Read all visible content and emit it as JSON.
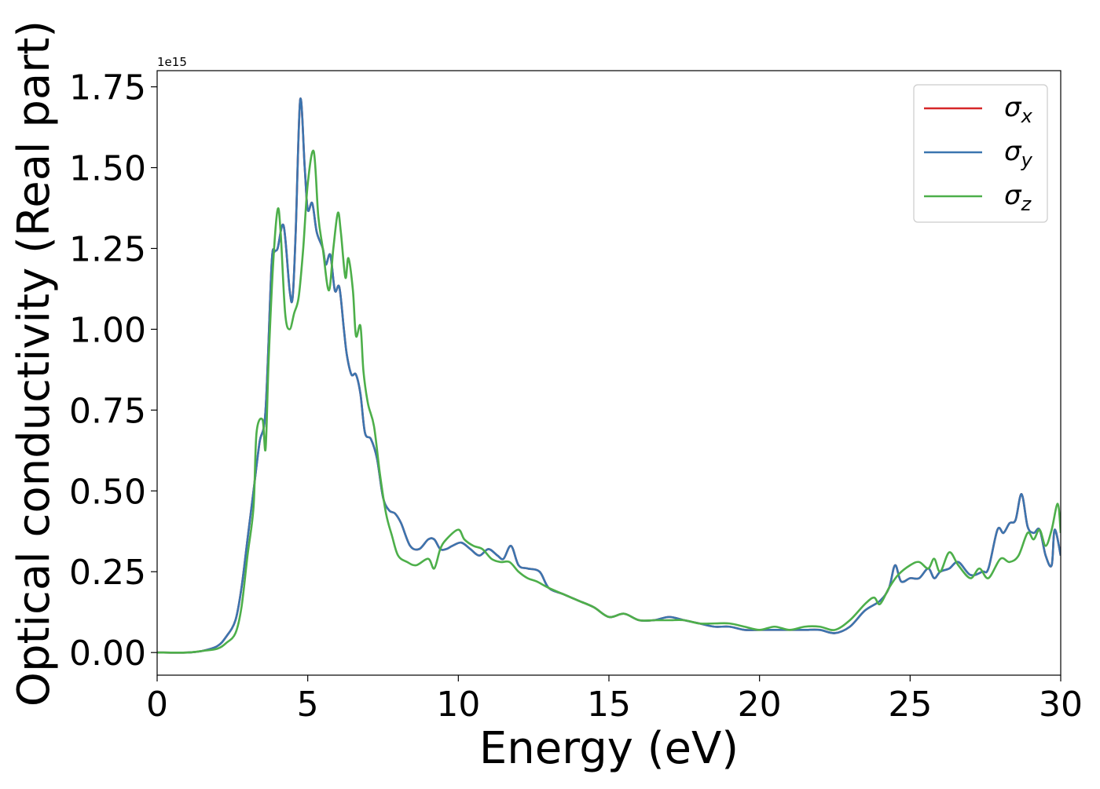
{
  "chart_data": {
    "type": "line",
    "title": "",
    "xlabel": "Energy (eV)",
    "ylabel": "Optical conductivity (Real part)",
    "y_offset_label": "1e15",
    "xlim": [
      0,
      30
    ],
    "ylim": [
      -0.07,
      1.8
    ],
    "x_ticks": [
      0,
      5,
      10,
      15,
      20,
      25,
      30
    ],
    "x_tick_labels": [
      "0",
      "5",
      "10",
      "15",
      "20",
      "25",
      "30"
    ],
    "y_ticks": [
      0.0,
      0.25,
      0.5,
      0.75,
      1.0,
      1.25,
      1.5,
      1.75
    ],
    "y_tick_labels": [
      "0.00",
      "0.25",
      "0.50",
      "0.75",
      "1.00",
      "1.25",
      "1.50",
      "1.75"
    ],
    "grid": false,
    "legend_position": "top-right",
    "series": [
      {
        "name": "σ_x",
        "symbol": "σ",
        "subscript": "x",
        "color": "#d62728",
        "x": [
          0,
          1,
          1.5,
          2,
          2.3,
          2.6,
          2.8,
          3.0,
          3.2,
          3.4,
          3.6,
          3.8,
          3.9,
          4.0,
          4.2,
          4.4,
          4.5,
          4.6,
          4.75,
          4.9,
          5.0,
          5.15,
          5.3,
          5.5,
          5.6,
          5.75,
          5.9,
          6.05,
          6.2,
          6.3,
          6.45,
          6.6,
          6.75,
          6.9,
          7.1,
          7.3,
          7.5,
          7.7,
          7.9,
          8.1,
          8.4,
          8.7,
          9.0,
          9.2,
          9.4,
          9.6,
          9.8,
          10.1,
          10.4,
          10.7,
          11.0,
          11.3,
          11.5,
          11.75,
          12.0,
          12.3,
          12.7,
          13.0,
          13.5,
          14.0,
          14.5,
          15.0,
          15.5,
          16.0,
          16.5,
          17.0,
          17.5,
          18.0,
          18.5,
          19.0,
          19.5,
          20.0,
          20.5,
          21.0,
          21.5,
          22.0,
          22.5,
          23.0,
          23.5,
          24.0,
          24.3,
          24.5,
          24.7,
          25.0,
          25.3,
          25.6,
          25.8,
          26.0,
          26.3,
          26.6,
          27.0,
          27.4,
          27.6,
          27.9,
          28.1,
          28.3,
          28.5,
          28.7,
          28.9,
          29.1,
          29.3,
          29.5,
          29.7,
          29.8,
          30.0
        ],
        "y": [
          0.0,
          0.0,
          0.005,
          0.02,
          0.05,
          0.1,
          0.2,
          0.35,
          0.5,
          0.65,
          0.75,
          1.2,
          1.24,
          1.25,
          1.32,
          1.12,
          1.1,
          1.3,
          1.71,
          1.5,
          1.37,
          1.39,
          1.3,
          1.25,
          1.2,
          1.23,
          1.12,
          1.13,
          1.0,
          0.92,
          0.86,
          0.86,
          0.8,
          0.68,
          0.66,
          0.6,
          0.48,
          0.44,
          0.43,
          0.4,
          0.33,
          0.32,
          0.35,
          0.35,
          0.32,
          0.32,
          0.33,
          0.34,
          0.32,
          0.3,
          0.32,
          0.3,
          0.29,
          0.33,
          0.27,
          0.26,
          0.25,
          0.2,
          0.18,
          0.16,
          0.14,
          0.11,
          0.12,
          0.1,
          0.1,
          0.11,
          0.1,
          0.09,
          0.08,
          0.08,
          0.07,
          0.07,
          0.07,
          0.07,
          0.07,
          0.07,
          0.06,
          0.08,
          0.13,
          0.16,
          0.2,
          0.27,
          0.22,
          0.23,
          0.23,
          0.26,
          0.23,
          0.25,
          0.26,
          0.28,
          0.24,
          0.25,
          0.26,
          0.38,
          0.37,
          0.4,
          0.41,
          0.49,
          0.39,
          0.37,
          0.38,
          0.3,
          0.27,
          0.38,
          0.3
        ]
      },
      {
        "name": "σ_y",
        "symbol": "σ",
        "subscript": "y",
        "color": "#3b75af",
        "x": [
          0,
          1,
          1.5,
          2,
          2.3,
          2.6,
          2.8,
          3.0,
          3.2,
          3.4,
          3.6,
          3.8,
          3.9,
          4.0,
          4.2,
          4.4,
          4.5,
          4.6,
          4.75,
          4.9,
          5.0,
          5.15,
          5.3,
          5.5,
          5.6,
          5.75,
          5.9,
          6.05,
          6.2,
          6.3,
          6.45,
          6.6,
          6.75,
          6.9,
          7.1,
          7.3,
          7.5,
          7.7,
          7.9,
          8.1,
          8.4,
          8.7,
          9.0,
          9.2,
          9.4,
          9.6,
          9.8,
          10.1,
          10.4,
          10.7,
          11.0,
          11.3,
          11.5,
          11.75,
          12.0,
          12.3,
          12.7,
          13.0,
          13.5,
          14.0,
          14.5,
          15.0,
          15.5,
          16.0,
          16.5,
          17.0,
          17.5,
          18.0,
          18.5,
          19.0,
          19.5,
          20.0,
          20.5,
          21.0,
          21.5,
          22.0,
          22.5,
          23.0,
          23.5,
          24.0,
          24.3,
          24.5,
          24.7,
          25.0,
          25.3,
          25.6,
          25.8,
          26.0,
          26.3,
          26.6,
          27.0,
          27.4,
          27.6,
          27.9,
          28.1,
          28.3,
          28.5,
          28.7,
          28.9,
          29.1,
          29.3,
          29.5,
          29.7,
          29.8,
          30.0
        ],
        "y": [
          0.0,
          0.0,
          0.005,
          0.02,
          0.05,
          0.1,
          0.2,
          0.35,
          0.5,
          0.65,
          0.75,
          1.2,
          1.24,
          1.25,
          1.32,
          1.12,
          1.1,
          1.3,
          1.71,
          1.5,
          1.37,
          1.39,
          1.3,
          1.25,
          1.2,
          1.23,
          1.12,
          1.13,
          1.0,
          0.92,
          0.86,
          0.86,
          0.8,
          0.68,
          0.66,
          0.6,
          0.48,
          0.44,
          0.43,
          0.4,
          0.33,
          0.32,
          0.35,
          0.35,
          0.32,
          0.32,
          0.33,
          0.34,
          0.32,
          0.3,
          0.32,
          0.3,
          0.29,
          0.33,
          0.27,
          0.26,
          0.25,
          0.2,
          0.18,
          0.16,
          0.14,
          0.11,
          0.12,
          0.1,
          0.1,
          0.11,
          0.1,
          0.09,
          0.08,
          0.08,
          0.07,
          0.07,
          0.07,
          0.07,
          0.07,
          0.07,
          0.06,
          0.08,
          0.13,
          0.16,
          0.2,
          0.27,
          0.22,
          0.23,
          0.23,
          0.26,
          0.23,
          0.25,
          0.26,
          0.28,
          0.24,
          0.25,
          0.26,
          0.38,
          0.37,
          0.4,
          0.41,
          0.49,
          0.39,
          0.37,
          0.38,
          0.3,
          0.27,
          0.38,
          0.3
        ]
      },
      {
        "name": "σ_z",
        "symbol": "σ",
        "subscript": "z",
        "color": "#4daf4a",
        "x": [
          0,
          1,
          1.5,
          2,
          2.3,
          2.6,
          2.8,
          3.0,
          3.2,
          3.3,
          3.5,
          3.6,
          3.7,
          3.85,
          4.0,
          4.1,
          4.25,
          4.4,
          4.55,
          4.7,
          4.85,
          5.0,
          5.2,
          5.35,
          5.5,
          5.7,
          5.85,
          6.0,
          6.1,
          6.25,
          6.35,
          6.5,
          6.6,
          6.75,
          6.85,
          7.0,
          7.2,
          7.4,
          7.6,
          7.8,
          8.0,
          8.3,
          8.6,
          9.0,
          9.2,
          9.4,
          9.6,
          10.0,
          10.2,
          10.5,
          10.8,
          11.1,
          11.4,
          11.7,
          12.0,
          12.3,
          12.6,
          13.0,
          13.5,
          14.0,
          14.5,
          15.0,
          15.5,
          16.0,
          16.5,
          17.0,
          17.5,
          18.0,
          18.5,
          19.0,
          19.5,
          20.0,
          20.5,
          21.0,
          21.5,
          22.0,
          22.5,
          23.0,
          23.5,
          23.8,
          24.0,
          24.3,
          24.6,
          25.0,
          25.3,
          25.6,
          25.8,
          26.0,
          26.3,
          26.6,
          27.0,
          27.3,
          27.6,
          28.0,
          28.3,
          28.6,
          28.9,
          29.1,
          29.3,
          29.5,
          29.7,
          29.9,
          30.0
        ],
        "y": [
          0.0,
          0.0,
          0.005,
          0.012,
          0.03,
          0.06,
          0.14,
          0.3,
          0.45,
          0.68,
          0.72,
          0.63,
          0.9,
          1.2,
          1.37,
          1.3,
          1.05,
          1.0,
          1.05,
          1.1,
          1.25,
          1.45,
          1.55,
          1.35,
          1.25,
          1.12,
          1.25,
          1.36,
          1.3,
          1.16,
          1.22,
          1.12,
          0.98,
          1.01,
          0.87,
          0.77,
          0.7,
          0.55,
          0.43,
          0.36,
          0.3,
          0.28,
          0.27,
          0.29,
          0.26,
          0.32,
          0.35,
          0.38,
          0.35,
          0.33,
          0.32,
          0.29,
          0.28,
          0.28,
          0.25,
          0.23,
          0.22,
          0.2,
          0.18,
          0.16,
          0.14,
          0.11,
          0.12,
          0.1,
          0.1,
          0.1,
          0.1,
          0.09,
          0.09,
          0.09,
          0.08,
          0.07,
          0.08,
          0.07,
          0.08,
          0.08,
          0.07,
          0.1,
          0.15,
          0.17,
          0.15,
          0.2,
          0.24,
          0.27,
          0.28,
          0.26,
          0.29,
          0.25,
          0.31,
          0.27,
          0.23,
          0.26,
          0.23,
          0.29,
          0.28,
          0.3,
          0.37,
          0.35,
          0.38,
          0.33,
          0.38,
          0.46,
          0.37
        ]
      }
    ]
  }
}
